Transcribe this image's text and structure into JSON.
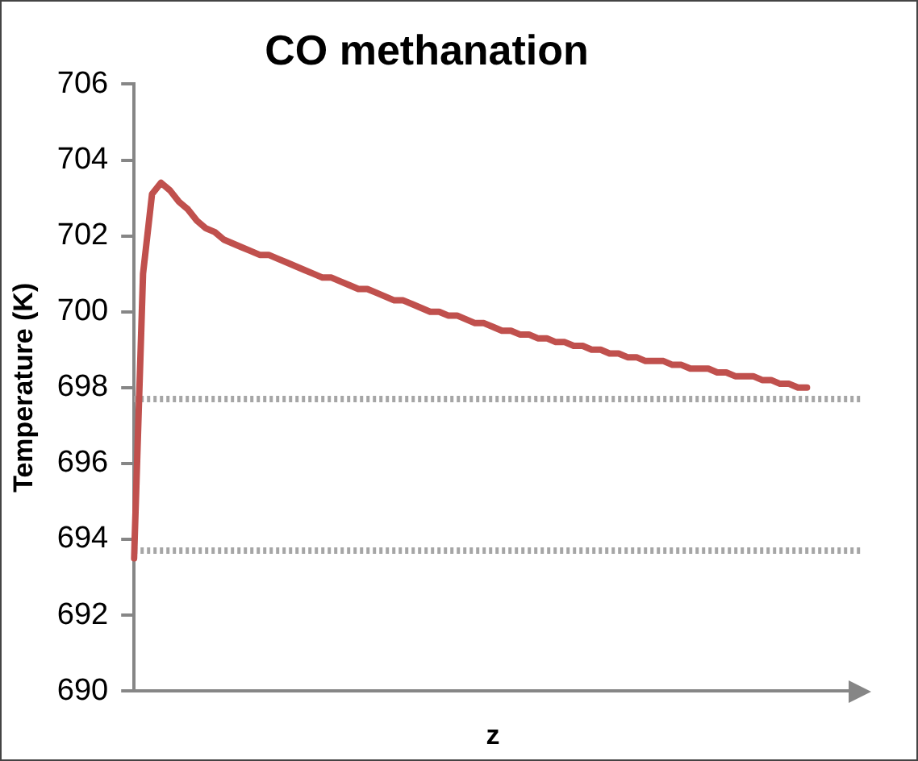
{
  "chart_data": {
    "type": "line",
    "title": "CO methanation",
    "xlabel": "z",
    "ylabel": "Temperature (K)",
    "categories": [
      null,
      null,
      null,
      null,
      null,
      null,
      null,
      null,
      null,
      null,
      null,
      null,
      null,
      null,
      null,
      null,
      null,
      null,
      null,
      null,
      null,
      null,
      null,
      null,
      null,
      null,
      null,
      null,
      null,
      null,
      null,
      null,
      null,
      null,
      null,
      null,
      null,
      null,
      null,
      null,
      null,
      null,
      null,
      null,
      null,
      null,
      null,
      null,
      null,
      null,
      null,
      null,
      null,
      null,
      null,
      null,
      null,
      null,
      null,
      null,
      null,
      null,
      null,
      null,
      null,
      null,
      null,
      null,
      null,
      null,
      null,
      null,
      null,
      null,
      null,
      null,
      null,
      null,
      null,
      null,
      null
    ],
    "series": [
      {
        "color": "#c0504d",
        "values": [
          693.5,
          701.0,
          703.1,
          703.4,
          703.2,
          702.9,
          702.7,
          702.4,
          702.2,
          702.1,
          701.9,
          701.8,
          701.7,
          701.6,
          701.5,
          701.5,
          701.4,
          701.3,
          701.2,
          701.1,
          701.0,
          700.9,
          700.9,
          700.8,
          700.7,
          700.6,
          700.6,
          700.5,
          700.4,
          700.3,
          700.3,
          700.2,
          700.1,
          700.0,
          700.0,
          699.9,
          699.9,
          699.8,
          699.7,
          699.7,
          699.6,
          699.5,
          699.5,
          699.4,
          699.4,
          699.3,
          699.3,
          699.2,
          699.2,
          699.1,
          699.1,
          699.0,
          699.0,
          698.9,
          698.9,
          698.8,
          698.8,
          698.7,
          698.7,
          698.7,
          698.6,
          698.6,
          698.5,
          698.5,
          698.5,
          698.4,
          698.4,
          698.3,
          698.3,
          698.3,
          698.2,
          698.2,
          698.1,
          698.1,
          698.0,
          698.0,
          null,
          null,
          null,
          null,
          null
        ]
      }
    ],
    "ylim": [
      690,
      706
    ],
    "yticks": [
      690,
      692,
      694,
      696,
      698,
      700,
      702,
      704,
      706
    ],
    "ref_lines": [
      {
        "axis": "y",
        "value": 697.7,
        "color": "#a6a6a6",
        "line_style": "dotted"
      },
      {
        "axis": "y",
        "value": 693.7,
        "color": "#a6a6a6",
        "line_style": "dotted"
      }
    ],
    "grid": false,
    "legend": false,
    "marker": "none",
    "tick_labels": "y"
  }
}
